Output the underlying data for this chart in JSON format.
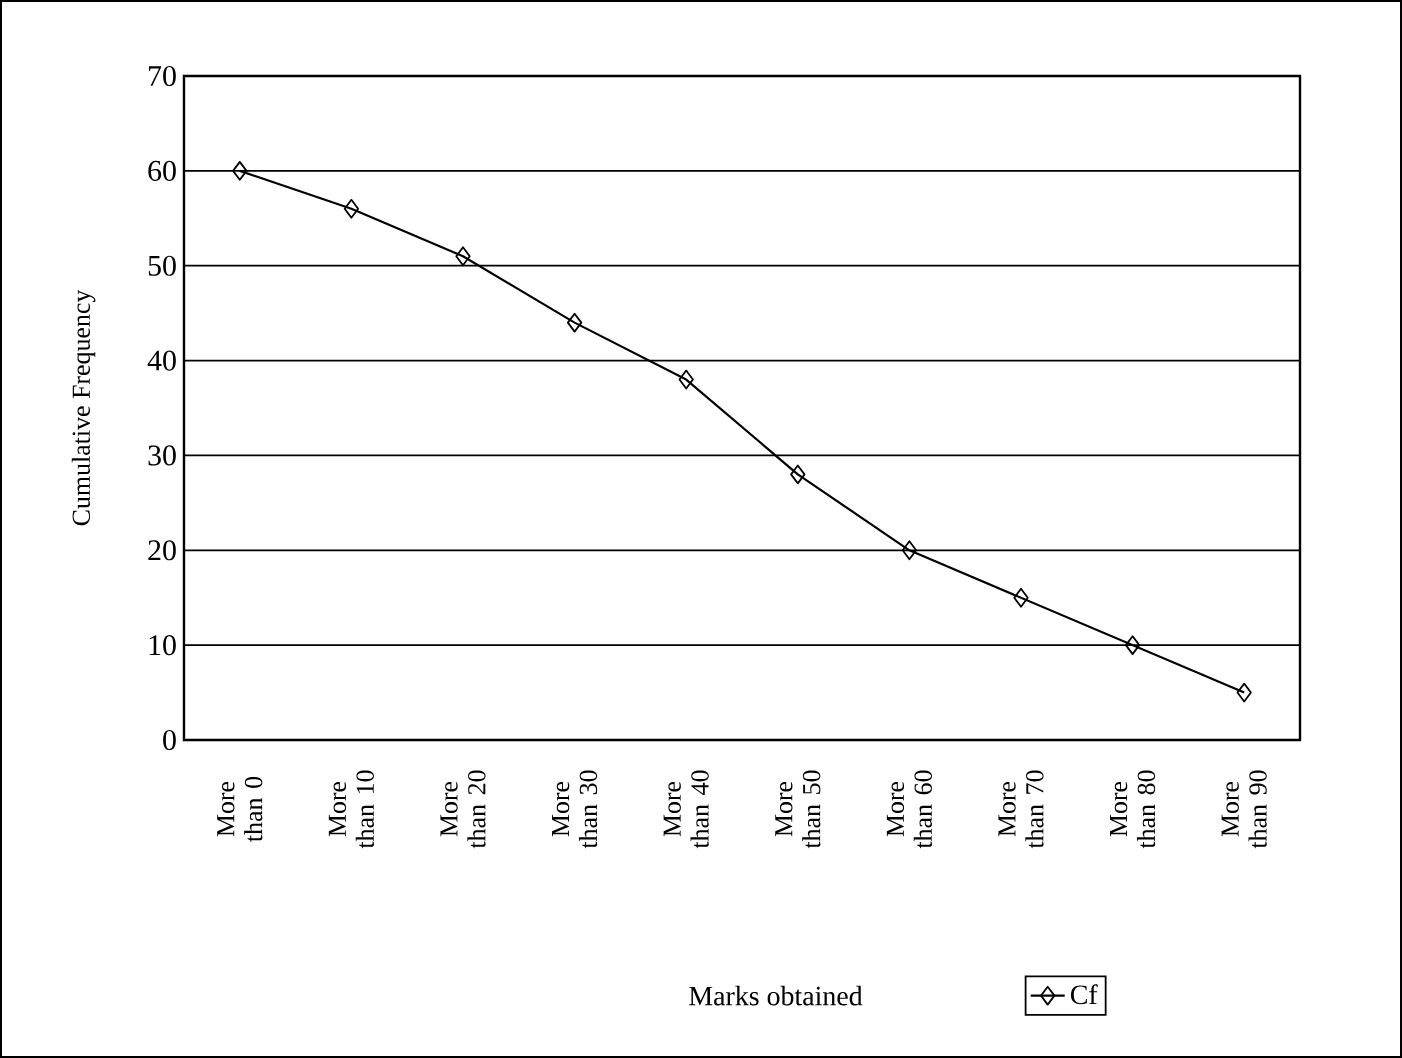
{
  "chart_data": {
    "type": "line",
    "xlabel": "Marks obtained",
    "ylabel": "Cumulative Frequency",
    "categories": [
      "More than 0",
      "More than 10",
      "More than 20",
      "More than 30",
      "More than 40",
      "More than 50",
      "More than 60",
      "More than 70",
      "More than 80",
      "More than 90"
    ],
    "series": [
      {
        "name": "Cf",
        "color": "#000000",
        "values": [
          60,
          56,
          51,
          44,
          38,
          28,
          20,
          15,
          10,
          5
        ]
      }
    ],
    "ylim": [
      0,
      70
    ],
    "yticks": [
      0,
      10,
      20,
      30,
      40,
      50,
      60,
      70
    ],
    "grid": "y",
    "legend": "bottom right",
    "marker": "diamond",
    "line_style": "solid"
  }
}
